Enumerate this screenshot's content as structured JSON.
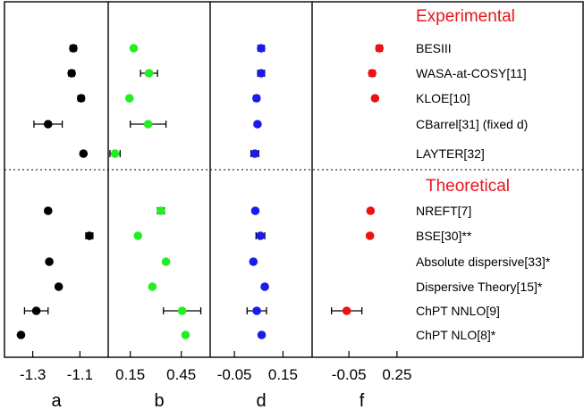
{
  "chart_data": {
    "type": "scatter",
    "sections": [
      {
        "title": "Experimental",
        "labels": [
          "BESIII",
          "WASA-at-COSY[11]",
          "KLOE[10]",
          "CBarrel[31] (fixed d)",
          "LAYTER[32]"
        ]
      },
      {
        "title": "Theoretical",
        "labels": [
          "NREFT[7]",
          "BSE[30]**",
          "Absolute dispersive[33]*",
          "Dispersive Theory[15]*",
          "ChPT NNLO[9]",
          "ChPT NLO[8]*"
        ]
      }
    ],
    "panels": [
      {
        "name": "a",
        "xlim": [
          -1.42,
          -0.98
        ],
        "ticks": [
          -1.3,
          -1.1
        ],
        "tick_labels": [
          "-1.3",
          "-1.1"
        ],
        "color": "#000000",
        "values": [
          -1.128,
          -1.135,
          -1.095,
          -1.235,
          -1.085,
          -1.235,
          -1.06,
          -1.23,
          -1.19,
          -1.285,
          -1.35
        ],
        "err_minus": [
          0.012,
          0.012,
          0.012,
          0.06,
          0.0,
          0.0,
          0.015,
          0.0,
          0.0,
          0.05,
          0.0
        ],
        "err_plus": [
          0.012,
          0.012,
          0.012,
          0.06,
          0.0,
          0.0,
          0.015,
          0.0,
          0.0,
          0.05,
          0.0
        ]
      },
      {
        "name": "b",
        "xlim": [
          0.02,
          0.62
        ],
        "ticks": [
          0.15,
          0.45
        ],
        "tick_labels": [
          "0.15",
          "0.45"
        ],
        "color": "#22ee22",
        "values": [
          0.17,
          0.26,
          0.145,
          0.255,
          0.06,
          0.33,
          0.195,
          0.36,
          0.28,
          0.455,
          0.475
        ],
        "err_minus": [
          0.0,
          0.05,
          0.0,
          0.105,
          0.03,
          0.02,
          0.0,
          0.0,
          0.0,
          0.11,
          0.0
        ],
        "err_plus": [
          0.0,
          0.05,
          0.0,
          0.105,
          0.03,
          0.02,
          0.0,
          0.0,
          0.0,
          0.11,
          0.0
        ]
      },
      {
        "name": "d",
        "xlim": [
          -0.15,
          0.27
        ],
        "ticks": [
          -0.05,
          0.15
        ],
        "tick_labels": [
          "-0.05",
          "0.15"
        ],
        "color": "#1a1aee",
        "values": [
          0.06,
          0.06,
          0.041,
          0.045,
          0.034,
          0.036,
          0.057,
          0.028,
          0.075,
          0.042,
          0.062
        ],
        "err_minus": [
          0.013,
          0.014,
          0.01,
          0.0,
          0.016,
          0.0,
          0.018,
          0.0,
          0.0,
          0.04,
          0.0
        ],
        "err_plus": [
          0.013,
          0.014,
          0.01,
          0.0,
          0.016,
          0.0,
          0.018,
          0.0,
          0.0,
          0.04,
          0.0
        ]
      },
      {
        "name": "f",
        "xlim": [
          -0.28,
          0.34
        ],
        "ticks": [
          -0.05,
          0.25
        ],
        "tick_labels": [
          "-0.05",
          "0.25"
        ],
        "color": "#ee1111",
        "values": [
          0.14,
          0.095,
          0.113,
          null,
          null,
          0.085,
          0.081,
          null,
          null,
          -0.064,
          null
        ],
        "err_minus": [
          0.018,
          0.017,
          0.0,
          0,
          0,
          0.0,
          0.0,
          0,
          0,
          0.095,
          0
        ],
        "err_plus": [
          0.018,
          0.017,
          0.0,
          0,
          0,
          0.0,
          0.0,
          0,
          0,
          0.095,
          0
        ]
      }
    ],
    "grid": false
  }
}
